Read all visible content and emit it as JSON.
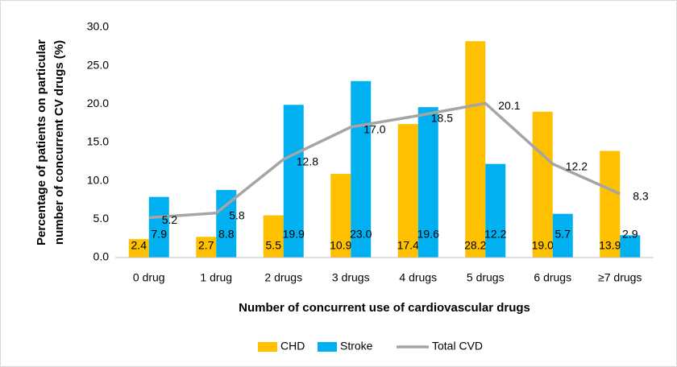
{
  "chart_data": {
    "type": "bar",
    "xlabel": "Number of concurrent use of cardiovascular drugs",
    "ylabel": [
      "Percentage of patients on particular",
      "number of concurrent CV drugs (%)"
    ],
    "categories": [
      "0 drug",
      "1 drug",
      "2 drugs",
      "3 drugs",
      "4 drugs",
      "5 drugs",
      "6 drugs",
      "≥7 drugs"
    ],
    "series": [
      {
        "name": "CHD",
        "type": "bar",
        "color": "#FFC000",
        "values": [
          2.4,
          2.7,
          5.5,
          10.9,
          17.4,
          28.2,
          19.0,
          13.9
        ],
        "value_labels": [
          "2.4",
          "2.7",
          "5.5",
          "10.9",
          "17.4",
          "28.2",
          "19.0",
          "13.9"
        ]
      },
      {
        "name": "Stroke",
        "type": "bar",
        "color": "#00B0F0",
        "values": [
          7.9,
          8.8,
          19.9,
          23.0,
          19.6,
          12.2,
          5.7,
          2.9
        ],
        "value_labels": [
          "7.9",
          "8.8",
          "19.9",
          "23.0",
          "19.6",
          "12.2",
          "5.7",
          "2.9"
        ]
      },
      {
        "name": "Total CVD",
        "type": "line",
        "color": "#A5A5A5",
        "values": [
          5.2,
          5.8,
          12.8,
          17.0,
          18.5,
          20.1,
          12.2,
          8.3
        ],
        "value_labels": [
          "5.2",
          "5.8",
          "12.8",
          "17.0",
          "18.5",
          "20.1",
          "12.2",
          "8.3"
        ]
      }
    ],
    "ylim": [
      0,
      30
    ],
    "yticks": [
      {
        "value": 0,
        "label": "0.0"
      },
      {
        "value": 5,
        "label": "5.0"
      },
      {
        "value": 10,
        "label": "10.0"
      },
      {
        "value": 15,
        "label": "15.0"
      },
      {
        "value": 20,
        "label": "20.0"
      },
      {
        "value": 25,
        "label": "25.0"
      },
      {
        "value": 30,
        "label": "30.0"
      }
    ],
    "grid": false,
    "legend": "bottom"
  }
}
